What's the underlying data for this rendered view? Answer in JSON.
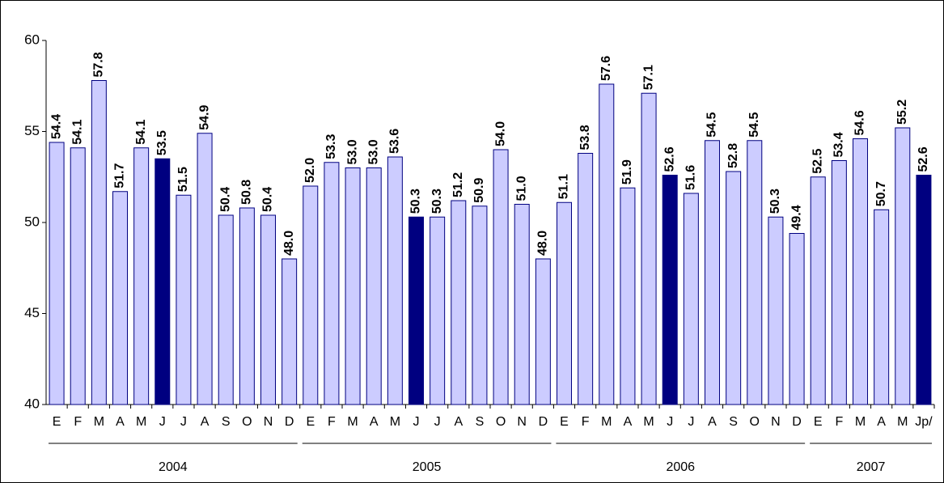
{
  "chart_data": {
    "type": "bar",
    "ylim": [
      40,
      60
    ],
    "yticks": [
      40,
      45,
      50,
      55,
      60
    ],
    "groups": [
      {
        "label": "2004",
        "categories": [
          "E",
          "F",
          "M",
          "A",
          "M",
          "J",
          "J",
          "A",
          "S",
          "O",
          "N",
          "D"
        ],
        "values": [
          54.4,
          54.1,
          57.8,
          51.7,
          54.1,
          53.5,
          51.5,
          54.9,
          50.4,
          50.8,
          50.4,
          48.0
        ],
        "value_labels": [
          "54.4",
          "54.1",
          "57.8",
          "51.7",
          "54.1",
          "53.5",
          "51.5",
          "54.9",
          "50.4",
          "50.8",
          "50.4",
          "48.0"
        ],
        "colors": [
          "#ccccff",
          "#ccccff",
          "#ccccff",
          "#ccccff",
          "#ccccff",
          "#000080",
          "#ccccff",
          "#ccccff",
          "#ccccff",
          "#ccccff",
          "#ccccff",
          "#ccccff"
        ]
      },
      {
        "label": "2005",
        "categories": [
          "E",
          "F",
          "M",
          "A",
          "M",
          "J",
          "J",
          "A",
          "S",
          "O",
          "N",
          "D"
        ],
        "values": [
          52.0,
          53.3,
          53.0,
          53.0,
          53.6,
          50.3,
          50.3,
          51.2,
          50.9,
          54.0,
          51.0,
          48.0
        ],
        "value_labels": [
          "52.0",
          "53.3",
          "53.0",
          "53.0",
          "53.6",
          "50.3",
          "50.3",
          "51.2",
          "50.9",
          "54.0",
          "51.0",
          "48.0"
        ],
        "colors": [
          "#ccccff",
          "#ccccff",
          "#ccccff",
          "#ccccff",
          "#ccccff",
          "#000080",
          "#ccccff",
          "#ccccff",
          "#ccccff",
          "#ccccff",
          "#ccccff",
          "#ccccff"
        ]
      },
      {
        "label": "2006",
        "categories": [
          "E",
          "F",
          "M",
          "A",
          "M",
          "J",
          "J",
          "A",
          "S",
          "O",
          "N",
          "D"
        ],
        "values": [
          51.1,
          53.8,
          57.6,
          51.9,
          57.1,
          52.6,
          51.6,
          54.5,
          52.8,
          54.5,
          50.3,
          49.4
        ],
        "value_labels": [
          "51.1",
          "53.8",
          "57.6",
          "51.9",
          "57.1",
          "52.6",
          "51.6",
          "54.5",
          "52.8",
          "54.5",
          "50.3",
          "49.4"
        ],
        "colors": [
          "#ccccff",
          "#ccccff",
          "#ccccff",
          "#ccccff",
          "#ccccff",
          "#000080",
          "#ccccff",
          "#ccccff",
          "#ccccff",
          "#ccccff",
          "#ccccff",
          "#ccccff"
        ]
      },
      {
        "label": "2007",
        "categories": [
          "E",
          "F",
          "M",
          "A",
          "M",
          "Jp/"
        ],
        "values": [
          52.5,
          53.4,
          54.6,
          50.7,
          55.2,
          52.6
        ],
        "value_labels": [
          "52.5",
          "53.4",
          "54.6",
          "50.7",
          "55.2",
          "52.6"
        ],
        "colors": [
          "#ccccff",
          "#ccccff",
          "#ccccff",
          "#ccccff",
          "#ccccff",
          "#000080"
        ]
      }
    ]
  }
}
